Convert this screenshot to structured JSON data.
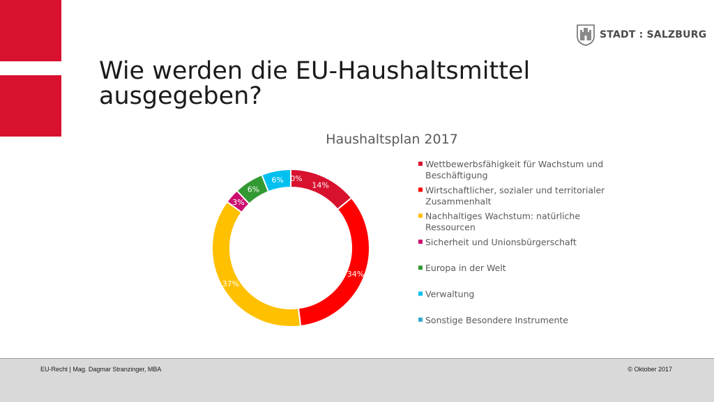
{
  "slide": {
    "title": "Wie werden die EU-Haushaltsmittel ausgegeben?",
    "logo_text": "STADT : SALZBURG",
    "footer_left": "EU-Recht | Mag. Dagmar Stranzinger, MBA",
    "footer_right": "© Oktober 2017"
  },
  "chart_data": {
    "type": "pie",
    "variant": "doughnut",
    "title": "Haushaltsplan 2017",
    "legend_position": "right",
    "slices": [
      {
        "label": "Wettbewerbsfähigkeit für Wachstum und Beschäftigung",
        "value": 14,
        "display": "14%",
        "color": "#d7112e"
      },
      {
        "label": "Wirtschaftlicher, sozialer und territorialer Zusammenhalt",
        "value": 34,
        "display": "34%",
        "color": "#ff0000"
      },
      {
        "label": "Nachhaltiges Wachstum: natürliche Ressourcen",
        "value": 37,
        "display": "37%",
        "color": "#ffc000"
      },
      {
        "label": "Sicherheit und Unionsbürgerschaft",
        "value": 3,
        "display": "3%",
        "color": "#cc0e6e"
      },
      {
        "label": "Europa in der Welt",
        "value": 6,
        "display": "6%",
        "color": "#339933"
      },
      {
        "label": "Verwaltung",
        "value": 6,
        "display": "6%",
        "color": "#00c0f0"
      },
      {
        "label": "Sonstige Besondere Instrumente",
        "value": 0,
        "display": "0%",
        "color": "#33aacc"
      }
    ]
  }
}
